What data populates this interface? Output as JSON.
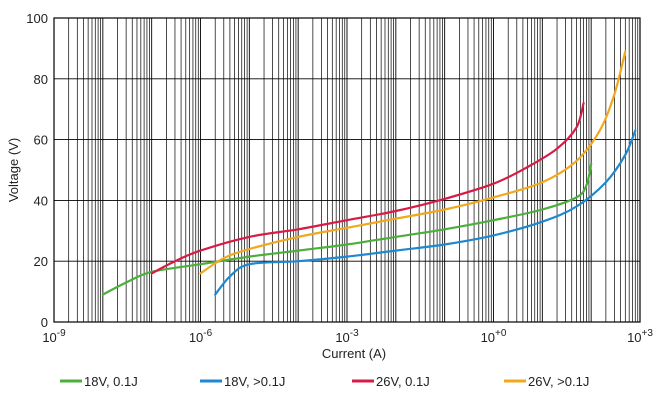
{
  "chart_data": {
    "type": "line",
    "xlabel": "Current (A)",
    "ylabel": "Voltage (V)",
    "xscale": "log",
    "xlim": [
      1e-09,
      1000
    ],
    "ylim": [
      0,
      100
    ],
    "grid": true,
    "legend_position": "bottom",
    "x_ticks": [
      {
        "value": 1e-09,
        "base": "10",
        "exp": "-9"
      },
      {
        "value": 1e-06,
        "base": "10",
        "exp": "-6"
      },
      {
        "value": 0.001,
        "base": "10",
        "exp": "-3"
      },
      {
        "value": 1,
        "base": "10",
        "exp": "+0"
      },
      {
        "value": 1000,
        "base": "10",
        "exp": "+3"
      }
    ],
    "y_ticks": [
      0,
      20,
      40,
      60,
      80,
      100
    ],
    "series": [
      {
        "name": "18V, 0.1J",
        "color": "#4caf3c",
        "points": [
          [
            1e-08,
            9
          ],
          [
            3e-08,
            13
          ],
          [
            1e-07,
            16.5
          ],
          [
            1e-06,
            19
          ],
          [
            1e-05,
            21.5
          ],
          [
            0.0001,
            23.5
          ],
          [
            0.001,
            25.5
          ],
          [
            0.01,
            28
          ],
          [
            0.1,
            30.5
          ],
          [
            1,
            33.5
          ],
          [
            10,
            37
          ],
          [
            50,
            41
          ],
          [
            80,
            45
          ],
          [
            100,
            52
          ]
        ]
      },
      {
        "name": "18V, >0.1J",
        "color": "#1e88d0",
        "points": [
          [
            2e-06,
            9
          ],
          [
            4e-06,
            15
          ],
          [
            1e-05,
            19
          ],
          [
            0.0001,
            20
          ],
          [
            0.001,
            21.5
          ],
          [
            0.01,
            23.5
          ],
          [
            0.1,
            25.5
          ],
          [
            1,
            28.5
          ],
          [
            10,
            33
          ],
          [
            50,
            38
          ],
          [
            200,
            46
          ],
          [
            500,
            55
          ],
          [
            800,
            63
          ]
        ]
      },
      {
        "name": "26V, 0.1J",
        "color": "#d81b45",
        "points": [
          [
            1e-07,
            16
          ],
          [
            3e-07,
            20
          ],
          [
            1e-06,
            23.5
          ],
          [
            1e-05,
            28
          ],
          [
            0.0001,
            30.5
          ],
          [
            0.001,
            33.5
          ],
          [
            0.01,
            36.5
          ],
          [
            0.1,
            40.5
          ],
          [
            1,
            45.5
          ],
          [
            5,
            51
          ],
          [
            20,
            57
          ],
          [
            50,
            64
          ],
          [
            70,
            72
          ]
        ]
      },
      {
        "name": "26V, >0.1J",
        "color": "#f2a81c",
        "points": [
          [
            1e-06,
            16
          ],
          [
            3e-06,
            21
          ],
          [
            1e-05,
            24
          ],
          [
            0.0001,
            28
          ],
          [
            0.001,
            31
          ],
          [
            0.01,
            34
          ],
          [
            0.1,
            37
          ],
          [
            1,
            41
          ],
          [
            10,
            46
          ],
          [
            50,
            53
          ],
          [
            150,
            63
          ],
          [
            300,
            75
          ],
          [
            500,
            89
          ]
        ]
      }
    ]
  }
}
